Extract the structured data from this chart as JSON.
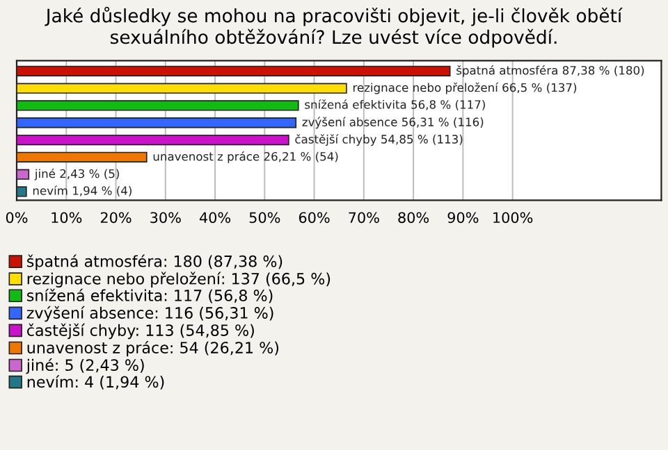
{
  "chart_data": {
    "type": "bar",
    "orientation": "horizontal",
    "title": "Jaké důsledky se mohou na pracovišti objevit, je-li člověk obětí sexuálního obtěžování? Lze uvést více odpovědí.",
    "categories": [
      null,
      null,
      null,
      null,
      null,
      null,
      null,
      null
    ],
    "series": [
      {
        "name": "špatná atmosféra: 180 (87,38 %)",
        "color": "#cc1100",
        "values": [
          87.38,
          null,
          null,
          null,
          null,
          null,
          null,
          null
        ],
        "value_labels": [
          "špatná atmosféra 87,38 % (180)",
          null,
          null,
          null,
          null,
          null,
          null,
          null
        ]
      },
      {
        "name": "rezignace nebo přeložení: 137 (66,5 %)",
        "color": "#ffdd00",
        "values": [
          null,
          66.5,
          null,
          null,
          null,
          null,
          null,
          null
        ],
        "value_labels": [
          null,
          "rezignace nebo přeložení 66,5 % (137)",
          null,
          null,
          null,
          null,
          null,
          null
        ]
      },
      {
        "name": "snížená efektivita: 117 (56,8 %)",
        "color": "#11bb11",
        "values": [
          null,
          null,
          56.8,
          null,
          null,
          null,
          null,
          null
        ],
        "value_labels": [
          null,
          null,
          "snížená efektivita 56,8 % (117)",
          null,
          null,
          null,
          null,
          null
        ]
      },
      {
        "name": "zvýšení absence: 116 (56,31 %)",
        "color": "#3366ff",
        "values": [
          null,
          null,
          null,
          56.31,
          null,
          null,
          null,
          null
        ],
        "value_labels": [
          null,
          null,
          null,
          "zvýšení absence 56,31 % (116)",
          null,
          null,
          null,
          null
        ]
      },
      {
        "name": "častější chyby: 113 (54,85 %)",
        "color": "#cc11cc",
        "values": [
          null,
          null,
          null,
          null,
          54.85,
          null,
          null,
          null
        ],
        "value_labels": [
          null,
          null,
          null,
          null,
          "častější chyby 54,85 % (113)",
          null,
          null,
          null
        ]
      },
      {
        "name": "unavenost z práce: 54 (26,21 %)",
        "color": "#ee7700",
        "values": [
          null,
          null,
          null,
          null,
          null,
          26.21,
          null,
          null
        ],
        "value_labels": [
          null,
          null,
          null,
          null,
          null,
          "unavenost z práce 26,21 % (54)",
          null,
          null
        ]
      },
      {
        "name": "jiné: 5 (2,43 %)",
        "color": "#cc66cc",
        "values": [
          null,
          null,
          null,
          null,
          null,
          null,
          2.43,
          null
        ],
        "value_labels": [
          null,
          null,
          null,
          null,
          null,
          null,
          "jiné 2,43 % (5)",
          null
        ]
      },
      {
        "name": "nevím: 4 (1,94 %)",
        "color": "#227788",
        "values": [
          null,
          null,
          null,
          null,
          null,
          null,
          null,
          1.94
        ],
        "value_labels": [
          null,
          null,
          null,
          null,
          null,
          null,
          null,
          "nevím 1,94 % (4)"
        ]
      }
    ],
    "xlim": [
      0,
      130
    ],
    "xticks": [
      {
        "value": 0,
        "label": "0%"
      },
      {
        "value": 10,
        "label": "10%"
      },
      {
        "value": 20,
        "label": "20%"
      },
      {
        "value": 30,
        "label": "30%"
      },
      {
        "value": 40,
        "label": "40%"
      },
      {
        "value": 50,
        "label": "50%"
      },
      {
        "value": 60,
        "label": "60%"
      },
      {
        "value": 70,
        "label": "70%"
      },
      {
        "value": 80,
        "label": "80%"
      },
      {
        "value": 90,
        "label": "90%"
      },
      {
        "value": 100,
        "label": "100%"
      }
    ],
    "grid": "x",
    "legend": "bottom"
  }
}
